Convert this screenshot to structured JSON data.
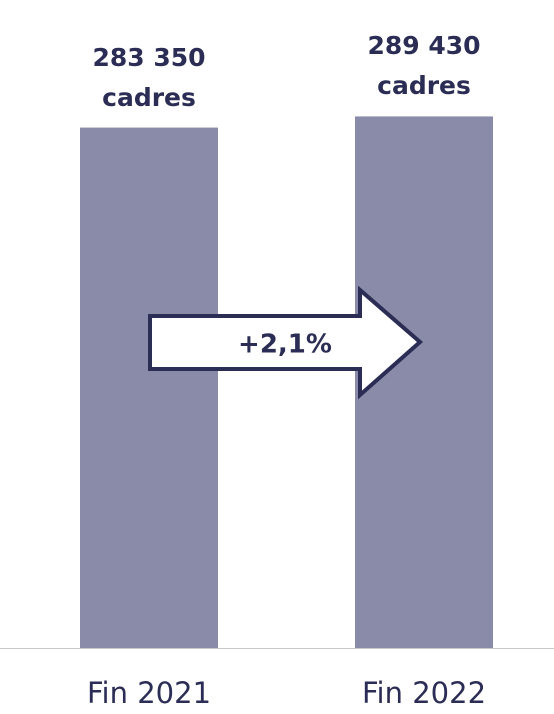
{
  "chart_data": {
    "type": "bar",
    "categories": [
      "Fin 2021",
      "Fin 2022"
    ],
    "values": [
      283350,
      289430
    ],
    "value_labels": [
      "283 350 cadres",
      "289 430 cadres"
    ],
    "color": "#8a8ba8",
    "ylim": [
      0,
      300000
    ],
    "annotation": "+2,1%"
  }
}
